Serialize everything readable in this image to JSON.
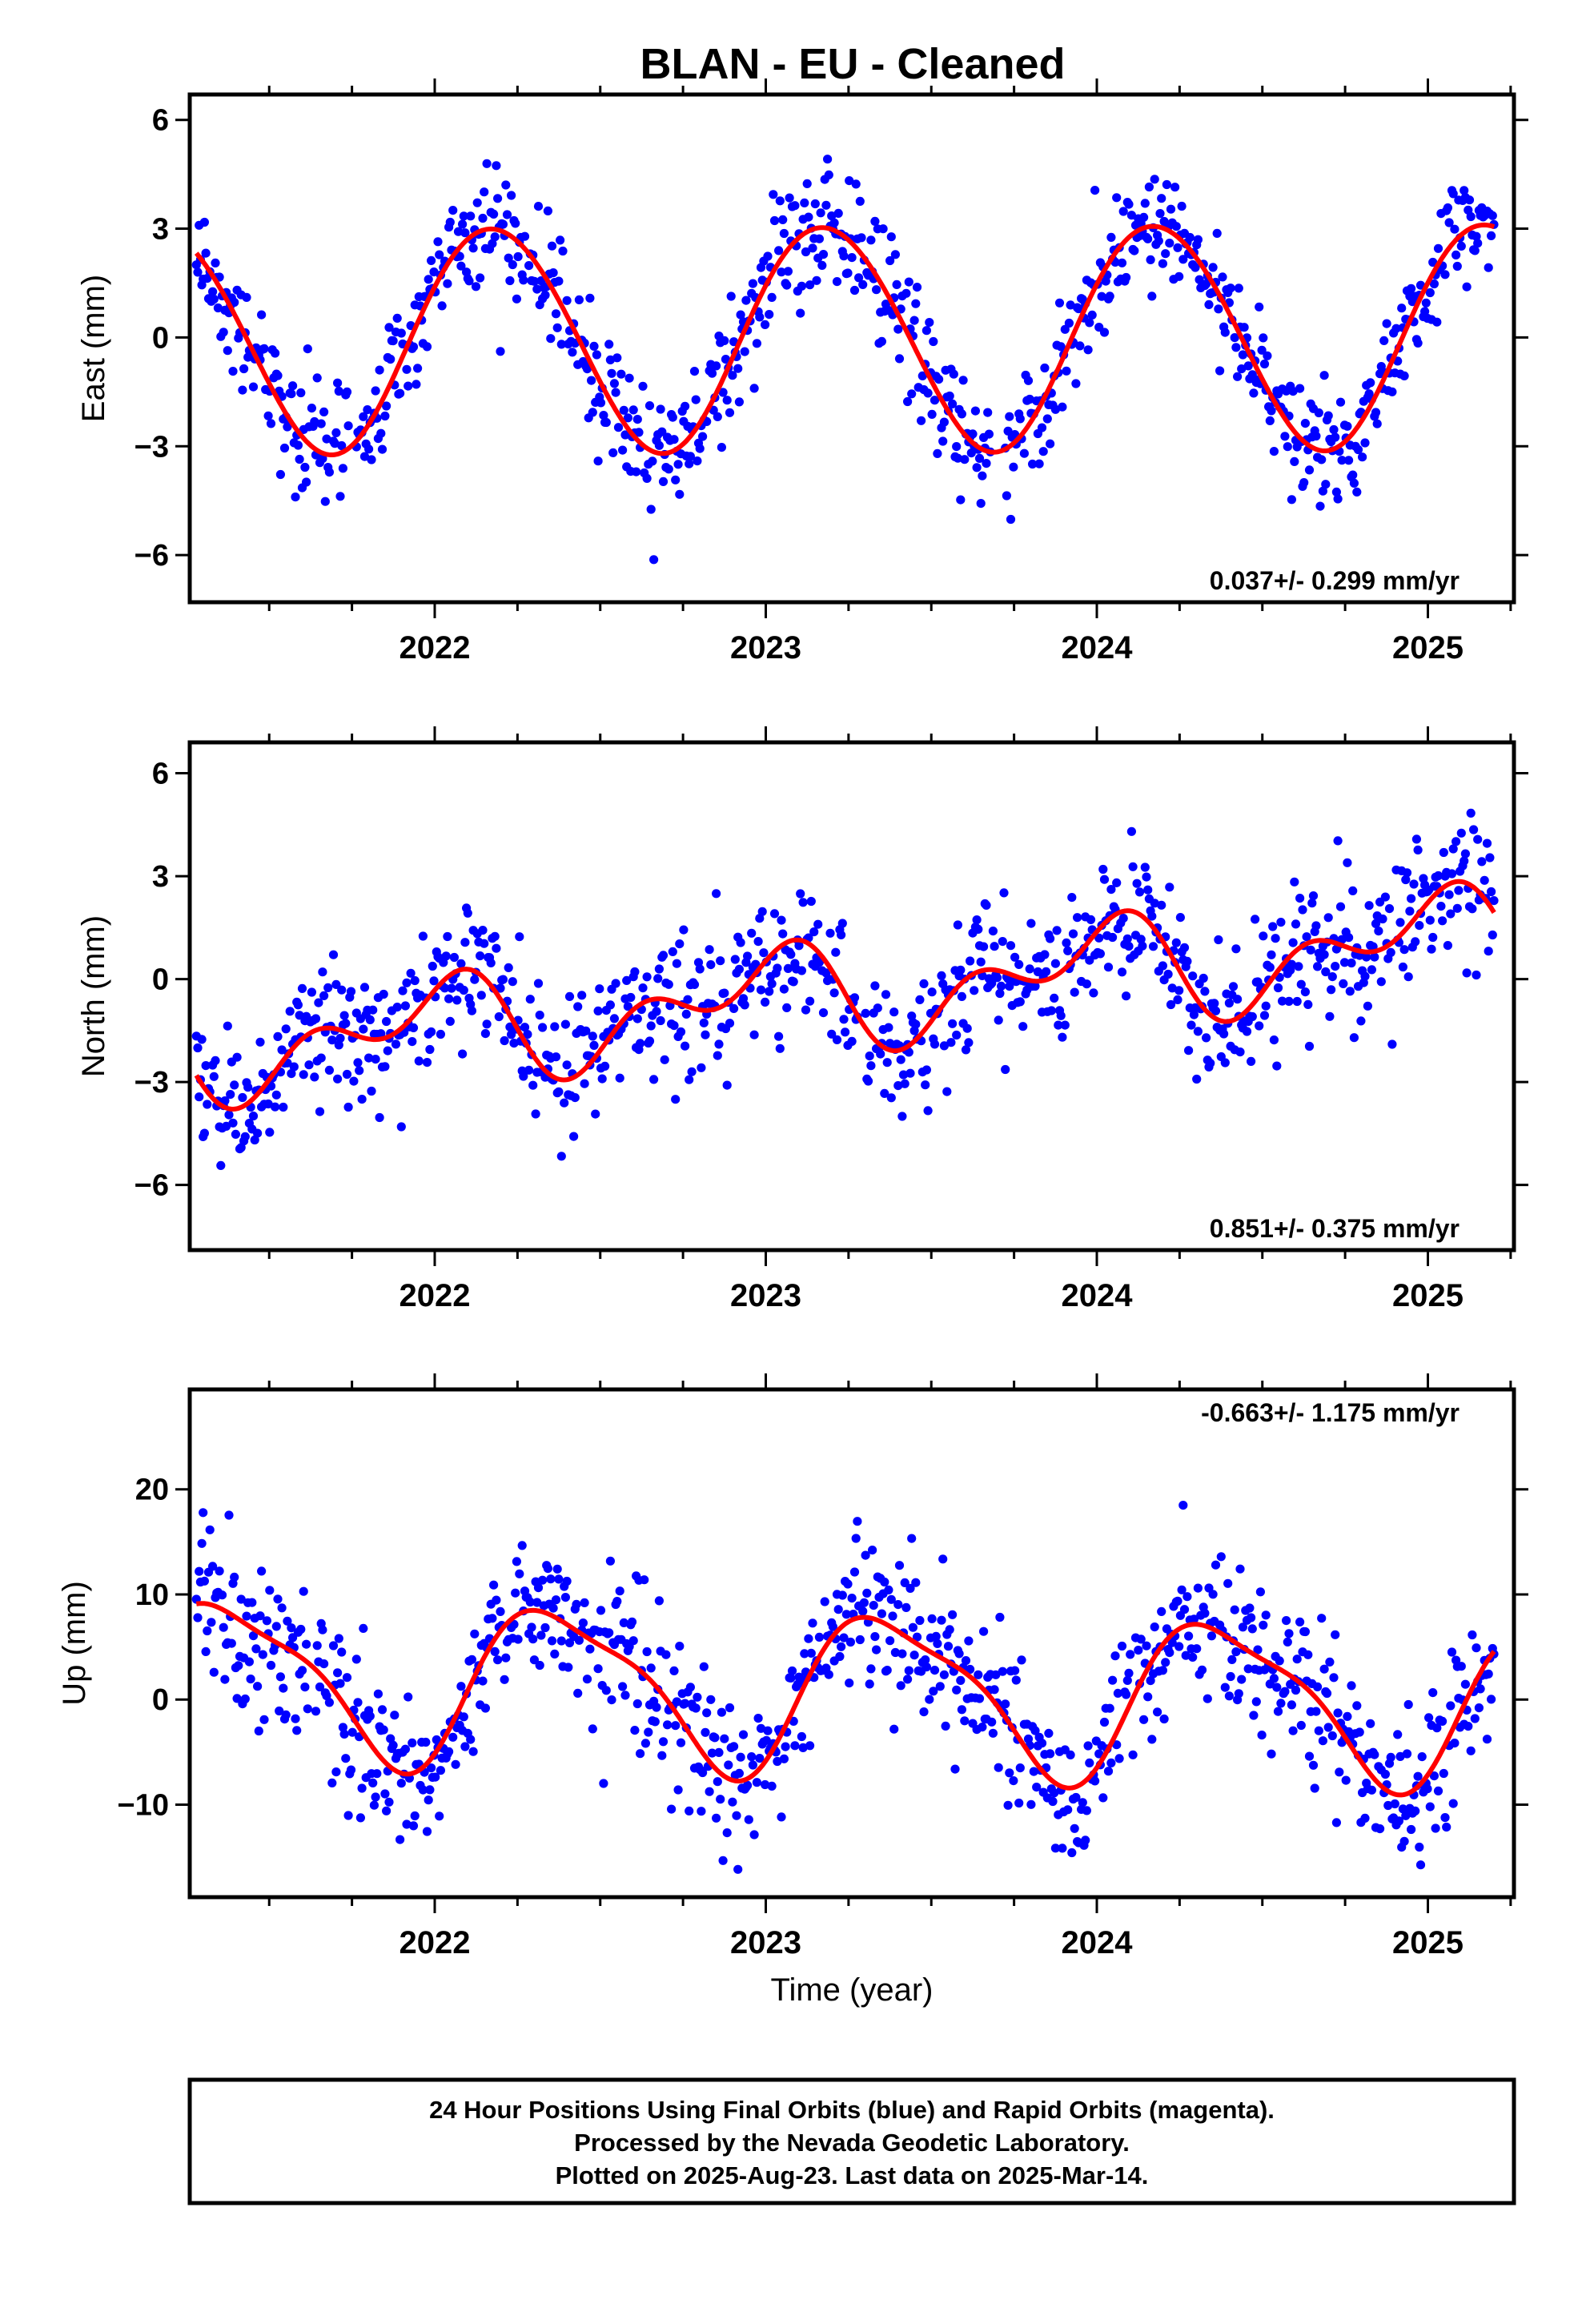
{
  "title": "BLAN  - EU - Cleaned",
  "colors": {
    "final_orbits": "#0000ff",
    "model": "#ff0000",
    "frame": "#000000"
  },
  "chart_data": [
    {
      "type": "scatter",
      "ylabel": "East (mm)",
      "xlabel": "",
      "xlim": [
        2021.26,
        2025.26
      ],
      "ylim": [
        -7.3,
        6.7
      ],
      "yticks": [
        6,
        3,
        0,
        -3,
        -6
      ],
      "ytick_labels": [
        "6",
        "3",
        "0",
        "−3",
        "−6"
      ],
      "xticks": [
        2022,
        2023,
        2024,
        2025
      ],
      "xtick_labels": [
        "2022",
        "2023",
        "2024",
        "2025"
      ],
      "rate_label": "0.037+/- 0.299 mm/yr",
      "rate_position": "bottom-right",
      "series": [
        {
          "kind": "points",
          "color": "#0000ff",
          "sample_step": 0.0041,
          "noise_sd": 0.85,
          "x_start": 2021.28,
          "x_end": 2025.2,
          "gaps": [
            [
              2021.74,
              2021.76
            ],
            [
              2023.68,
              2023.72
            ]
          ]
        },
        {
          "kind": "model",
          "color": "#ff0000",
          "offset": 0.0,
          "rate": 0.037,
          "ref_year": 2023.2,
          "annual_amp": 3.1,
          "annual_phase": 0.18,
          "semiannual_amp": 0.12,
          "semiannual_phase": 0.0
        }
      ]
    },
    {
      "type": "scatter",
      "ylabel": "North (mm)",
      "xlabel": "",
      "xlim": [
        2021.26,
        2025.26
      ],
      "ylim": [
        -7.9,
        6.9
      ],
      "yticks": [
        6,
        3,
        0,
        -3,
        -6
      ],
      "ytick_labels": [
        "6",
        "3",
        "0",
        "−3",
        "−6"
      ],
      "xticks": [
        2022,
        2023,
        2024,
        2025
      ],
      "xtick_labels": [
        "2022",
        "2023",
        "2024",
        "2025"
      ],
      "rate_label": "0.851+/- 0.375 mm/yr",
      "rate_position": "bottom-right",
      "series": [
        {
          "kind": "points",
          "color": "#0000ff",
          "sample_step": 0.0041,
          "noise_sd": 1.0,
          "x_start": 2021.28,
          "x_end": 2025.2,
          "gaps": [
            [
              2023.28,
              2023.3
            ]
          ]
        },
        {
          "kind": "model",
          "color": "#ff0000",
          "offset": -0.45,
          "rate": 0.851,
          "ref_year": 2023.2,
          "annual_amp": 1.1,
          "annual_phase": 0.98,
          "semiannual_amp": 0.9,
          "semiannual_phase": 0.62
        }
      ]
    },
    {
      "type": "scatter",
      "ylabel": "Up (mm)",
      "xlabel": "Time (year)",
      "xlim": [
        2021.26,
        2025.26
      ],
      "ylim": [
        -18.8,
        29.5
      ],
      "yticks": [
        20,
        10,
        0,
        -10
      ],
      "ytick_labels": [
        "20",
        "10",
        "0",
        "−10"
      ],
      "xticks": [
        2022,
        2023,
        2024,
        2025
      ],
      "xtick_labels": [
        "2022",
        "2023",
        "2024",
        "2025"
      ],
      "rate_label": "-0.663+/- 1.175 mm/yr",
      "rate_position": "top-right",
      "series": [
        {
          "kind": "points",
          "color": "#0000ff",
          "sample_step": 0.0041,
          "noise_sd": 3.6,
          "x_start": 2021.28,
          "x_end": 2025.2,
          "gaps": [
            [
              2021.62,
              2021.64
            ]
          ]
        },
        {
          "kind": "model",
          "color": "#ff0000",
          "offset": 0.9,
          "rate": -0.663,
          "ref_year": 2023.2,
          "annual_amp": 7.3,
          "annual_phase": 0.38,
          "semiannual_amp": 1.9,
          "semiannual_phase": 0.2
        }
      ]
    }
  ],
  "footer": {
    "line1": "24 Hour Positions Using Final Orbits (blue) and Rapid Orbits (magenta).",
    "line2": "Processed by the Nevada Geodetic Laboratory.",
    "line3": "Plotted on 2025-Aug-23. Last data on 2025-Mar-14."
  }
}
